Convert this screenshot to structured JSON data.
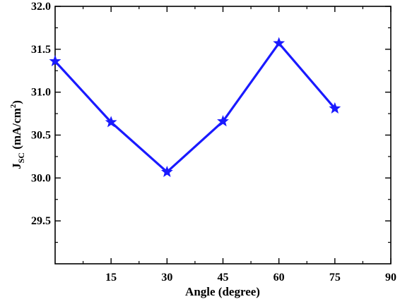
{
  "chart_data": {
    "type": "line",
    "title": "",
    "xlabel": "Angle (degree)",
    "ylabel": {
      "main": "J",
      "sub": "SC",
      "unit_pre": " (mA/cm",
      "unit_sup": "2",
      "unit_post": ")"
    },
    "xlim": [
      0,
      90
    ],
    "ylim": [
      29.0,
      32.0
    ],
    "x_ticks": [
      15,
      30,
      45,
      60,
      75,
      90
    ],
    "y_ticks": [
      "29.5",
      "30.0",
      "30.5",
      "31.0",
      "31.5",
      "32.0"
    ],
    "grid": false,
    "legend": "none",
    "marker": "star",
    "series": [
      {
        "color": "#1a1aff",
        "x": [
          0,
          15,
          30,
          45,
          60,
          75
        ],
        "y": [
          31.36,
          30.65,
          30.07,
          30.66,
          31.57,
          30.81
        ]
      }
    ]
  }
}
